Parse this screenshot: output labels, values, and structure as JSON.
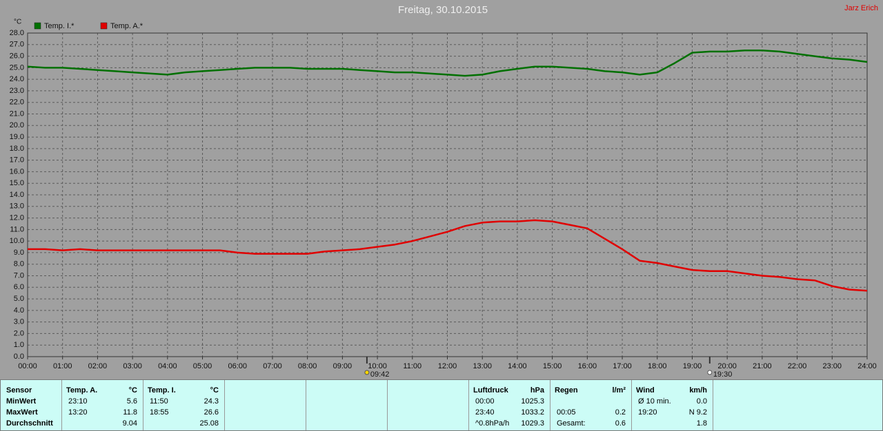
{
  "chart_data": {
    "type": "line",
    "title": "Freitag, 30.10.2015",
    "author": "Jarz Erich",
    "y_label": "°C",
    "grid": true,
    "x": [
      0,
      0.5,
      1,
      1.5,
      2,
      2.5,
      3,
      3.5,
      4,
      4.5,
      5,
      5.5,
      6,
      6.5,
      7,
      7.5,
      8,
      8.5,
      9,
      9.5,
      10,
      10.5,
      11,
      11.5,
      12,
      12.5,
      13,
      13.5,
      14,
      14.5,
      15,
      15.5,
      16,
      16.5,
      17,
      17.5,
      18,
      18.5,
      19,
      19.5,
      20,
      20.5,
      21,
      21.5,
      22,
      22.5,
      23,
      23.5,
      24
    ],
    "series": [
      {
        "name": "Temp. I.*",
        "color": "#007000",
        "values": [
          25.1,
          25.0,
          25.0,
          24.9,
          24.8,
          24.7,
          24.6,
          24.5,
          24.4,
          24.6,
          24.7,
          24.8,
          24.9,
          25.0,
          25.0,
          25.0,
          24.9,
          24.9,
          24.9,
          24.8,
          24.7,
          24.6,
          24.6,
          24.5,
          24.4,
          24.3,
          24.4,
          24.7,
          24.9,
          25.1,
          25.1,
          25.0,
          24.9,
          24.7,
          24.6,
          24.4,
          24.6,
          25.4,
          26.3,
          26.4,
          26.4,
          26.5,
          26.5,
          26.4,
          26.2,
          26.0,
          25.8,
          25.7,
          25.5
        ]
      },
      {
        "name": "Temp. A.*",
        "color": "#e00000",
        "values": [
          9.3,
          9.3,
          9.2,
          9.3,
          9.2,
          9.2,
          9.2,
          9.2,
          9.2,
          9.2,
          9.2,
          9.2,
          9.0,
          8.9,
          8.9,
          8.9,
          8.9,
          9.1,
          9.2,
          9.3,
          9.5,
          9.7,
          10.0,
          10.4,
          10.8,
          11.3,
          11.6,
          11.7,
          11.7,
          11.8,
          11.7,
          11.4,
          11.1,
          10.2,
          9.3,
          8.3,
          8.1,
          7.8,
          7.5,
          7.4,
          7.4,
          7.2,
          7.0,
          6.9,
          6.7,
          6.6,
          6.1,
          5.8,
          5.7
        ]
      }
    ],
    "xlim": [
      0,
      24
    ],
    "xticks": [
      {
        "value": 0,
        "label": "00:00"
      },
      {
        "value": 1,
        "label": "01:00"
      },
      {
        "value": 2,
        "label": "02:00"
      },
      {
        "value": 3,
        "label": "03:00"
      },
      {
        "value": 4,
        "label": "04:00"
      },
      {
        "value": 5,
        "label": "05:00"
      },
      {
        "value": 6,
        "label": "06:00"
      },
      {
        "value": 7,
        "label": "07:00"
      },
      {
        "value": 8,
        "label": "08:00"
      },
      {
        "value": 9,
        "label": "09:00"
      },
      {
        "value": 10,
        "label": "10:00"
      },
      {
        "value": 11,
        "label": "11:00"
      },
      {
        "value": 12,
        "label": "12:00"
      },
      {
        "value": 13,
        "label": "13:00"
      },
      {
        "value": 14,
        "label": "14:00"
      },
      {
        "value": 15,
        "label": "15:00"
      },
      {
        "value": 16,
        "label": "16:00"
      },
      {
        "value": 17,
        "label": "17:00"
      },
      {
        "value": 18,
        "label": "18:00"
      },
      {
        "value": 19,
        "label": "19:00"
      },
      {
        "value": 20,
        "label": "20:00"
      },
      {
        "value": 21,
        "label": "21:00"
      },
      {
        "value": 22,
        "label": "22:00"
      },
      {
        "value": 23,
        "label": "23:00"
      },
      {
        "value": 24,
        "label": "24:00"
      }
    ],
    "ylim": [
      0,
      28
    ],
    "yticks": [
      {
        "value": 0,
        "label": "0.0"
      },
      {
        "value": 1,
        "label": "1.0"
      },
      {
        "value": 2,
        "label": "2.0"
      },
      {
        "value": 3,
        "label": "3.0"
      },
      {
        "value": 4,
        "label": "4.0"
      },
      {
        "value": 5,
        "label": "5.0"
      },
      {
        "value": 6,
        "label": "6.0"
      },
      {
        "value": 7,
        "label": "7.0"
      },
      {
        "value": 8,
        "label": "8.0"
      },
      {
        "value": 9,
        "label": "9.0"
      },
      {
        "value": 10,
        "label": "10.0"
      },
      {
        "value": 11,
        "label": "11.0"
      },
      {
        "value": 12,
        "label": "12.0"
      },
      {
        "value": 13,
        "label": "13.0"
      },
      {
        "value": 14,
        "label": "14.0"
      },
      {
        "value": 15,
        "label": "15.0"
      },
      {
        "value": 16,
        "label": "16.0"
      },
      {
        "value": 17,
        "label": "17.0"
      },
      {
        "value": 18,
        "label": "18.0"
      },
      {
        "value": 19,
        "label": "19.0"
      },
      {
        "value": 20,
        "label": "20.0"
      },
      {
        "value": 21,
        "label": "21.0"
      },
      {
        "value": 22,
        "label": "22.0"
      },
      {
        "value": 23,
        "label": "23.0"
      },
      {
        "value": 24,
        "label": "24.0"
      },
      {
        "value": 25,
        "label": "25.0"
      },
      {
        "value": 26,
        "label": "26.0"
      },
      {
        "value": 27,
        "label": "27.0"
      },
      {
        "value": 28,
        "label": "28.0"
      }
    ],
    "sun_markers": [
      {
        "value": 9.7,
        "label": "09:42"
      },
      {
        "value": 19.5,
        "label": "19:30"
      }
    ]
  },
  "table": {
    "row_labels_header": "Sensor",
    "row_labels": [
      "MinWert",
      "MaxWert",
      "Durchschnitt"
    ],
    "groups": [
      {
        "col": 1,
        "title": "Temp. A.",
        "unit": "°C",
        "rows": [
          {
            "time": "23:10",
            "value": "5.6"
          },
          {
            "time": "13:20",
            "value": "11.8"
          },
          {
            "value": "9.04"
          }
        ]
      },
      {
        "col": 2,
        "title": "Temp. I.",
        "unit": "°C",
        "rows": [
          {
            "time": "11:50",
            "value": "24.3"
          },
          {
            "time": "18:55",
            "value": "26.6"
          },
          {
            "value": "25.08"
          }
        ]
      },
      {
        "col": 6,
        "title": "Luftdruck",
        "unit": "hPa",
        "rows": [
          {
            "time": "00:00",
            "value": "1025.3"
          },
          {
            "time": "23:40",
            "value": "1033.2"
          },
          {
            "time": "^0.8hPa/h",
            "value": "1029.3"
          }
        ]
      },
      {
        "col": 7,
        "title": "Regen",
        "unit": "l/m²",
        "rows": [
          null,
          {
            "time": "00:05",
            "value": "0.2"
          },
          {
            "time": "Gesamt:",
            "value": "0.6"
          }
        ]
      },
      {
        "col": 8,
        "title": "Wind",
        "unit": "km/h",
        "rows": [
          {
            "time": "Ø 10 min.",
            "value": "0.0"
          },
          {
            "time": "19:20",
            "value": "N 9.2"
          },
          {
            "value": "1.8"
          }
        ]
      }
    ]
  }
}
